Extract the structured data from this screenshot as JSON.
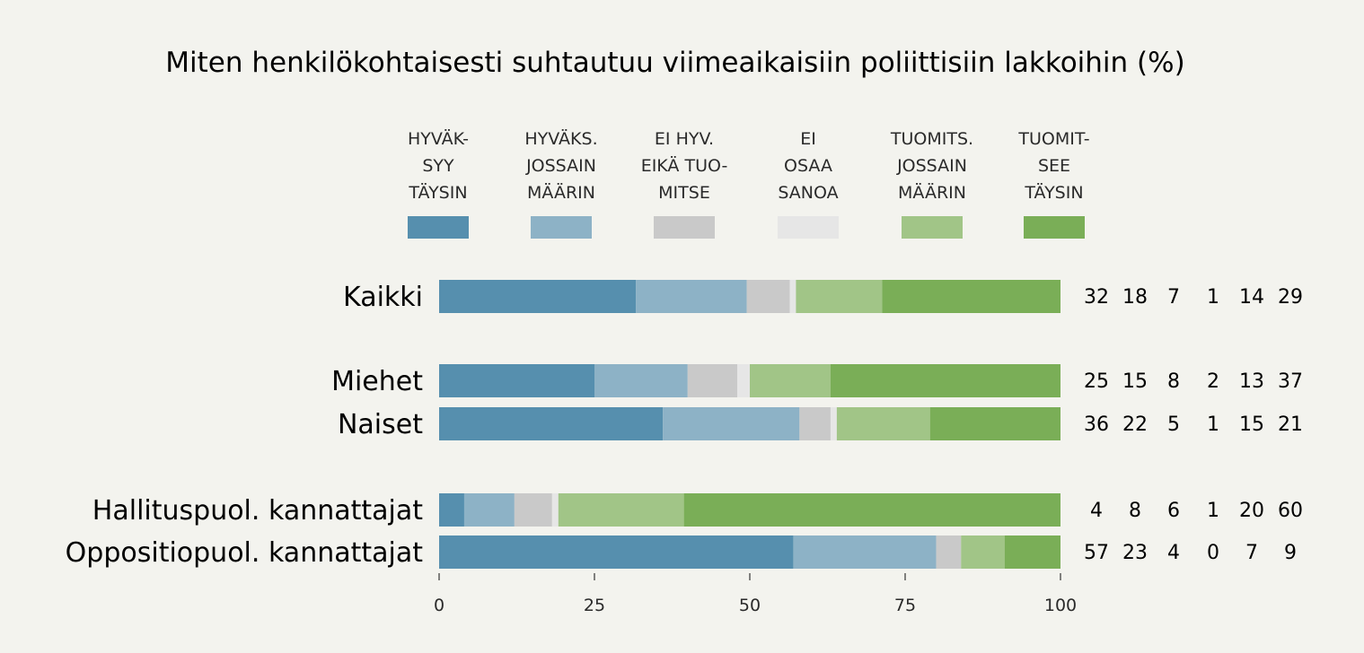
{
  "chart_data": {
    "type": "bar",
    "orientation": "horizontal",
    "stacked": true,
    "title": "Miten henkilökohtaisesti suhtautuu viimeaikaisiin poliittisiin lakkoihin (%)",
    "xlim": [
      0,
      100
    ],
    "xticks": [
      0,
      25,
      50,
      75,
      100
    ],
    "legend_position": "top",
    "grid": false,
    "series": [
      {
        "name": "HYVÄK-SYY TÄYSIN",
        "label_lines": [
          "HYVÄK-",
          "SYY",
          "TÄYSIN"
        ],
        "color": "#568fae"
      },
      {
        "name": "HYVÄKS. JOSSAIN MÄÄRIN",
        "label_lines": [
          "HYVÄKS.",
          "JOSSAIN",
          "MÄÄRIN"
        ],
        "color": "#8db2c6"
      },
      {
        "name": "EI HYV. EIKÄ TUO-MITSE",
        "label_lines": [
          "EI HYV.",
          "EIKÄ TUO-",
          "MITSE"
        ],
        "color": "#c9c9c9"
      },
      {
        "name": "EI OSAA SANOA",
        "label_lines": [
          "EI",
          "OSAA",
          "SANOA"
        ],
        "color": "#e6e6e6"
      },
      {
        "name": "TUOMITS. JOSSAIN MÄÄRIN",
        "label_lines": [
          "TUOMITS.",
          "JOSSAIN",
          "MÄÄRIN"
        ],
        "color": "#a1c587"
      },
      {
        "name": "TUOMIT-SEE TÄYSIN",
        "label_lines": [
          "TUOMIT-",
          "SEE",
          "TÄYSIN"
        ],
        "color": "#7aae57"
      }
    ],
    "groups": [
      {
        "label": "Kaikki",
        "group": 0,
        "values": [
          32,
          18,
          7,
          1,
          14,
          29
        ]
      },
      {
        "label": "Miehet",
        "group": 1,
        "values": [
          25,
          15,
          8,
          2,
          13,
          37
        ]
      },
      {
        "label": "Naiset",
        "group": 1,
        "values": [
          36,
          22,
          5,
          1,
          15,
          21
        ]
      },
      {
        "label": "Hallituspuol. kannattajat",
        "group": 2,
        "values": [
          4,
          8,
          6,
          1,
          20,
          60
        ]
      },
      {
        "label": "Oppositiopuol. kannattajat",
        "group": 2,
        "values": [
          57,
          23,
          4,
          0,
          7,
          9
        ]
      }
    ]
  }
}
